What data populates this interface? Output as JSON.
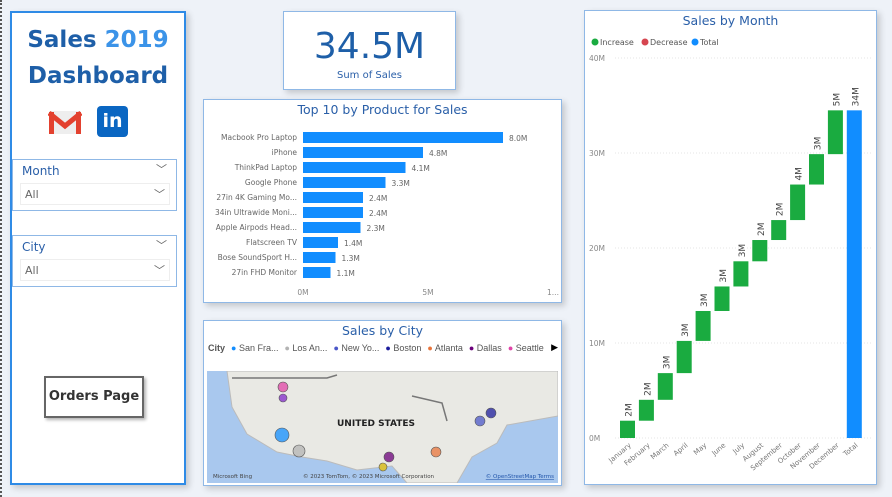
{
  "header": {
    "title_part1": "Sales",
    "title_year": "2019",
    "title_part2": "Dashboard"
  },
  "icons": {
    "gmail": "gmail-icon",
    "linkedin": "linkedin-icon"
  },
  "filters": [
    {
      "label": "Month",
      "value": "All"
    },
    {
      "label": "City",
      "value": "All"
    }
  ],
  "orders_button": "Orders Page",
  "kpi": {
    "value": "34.5M",
    "label": "Sum of Sales"
  },
  "colors": {
    "accent": "#118dff",
    "increase": "#1aab40",
    "decrease": "#d64550",
    "total": "#118dff",
    "title": "#2a5fa8"
  },
  "chart_data": [
    {
      "type": "bar",
      "title": "Top 10 by Product for Sales",
      "orientation": "horizontal",
      "categories": [
        "Macbook Pro Laptop",
        "iPhone",
        "ThinkPad Laptop",
        "Google Phone",
        "27in 4K Gaming Mo...",
        "34in Ultrawide Moni...",
        "Apple Airpods Head...",
        "Flatscreen TV",
        "Bose SoundSport H...",
        "27in FHD Monitor"
      ],
      "values": [
        8.0,
        4.8,
        4.1,
        3.3,
        2.4,
        2.4,
        2.3,
        1.4,
        1.3,
        1.1
      ],
      "data_labels": [
        "8.0M",
        "4.8M",
        "4.1M",
        "3.3M",
        "2.4M",
        "2.4M",
        "2.3M",
        "1.4M",
        "1.3M",
        "1.1M"
      ],
      "xticks": [
        "0M",
        "5M",
        "1..."
      ],
      "xlim": [
        0,
        10
      ],
      "unit": "M"
    },
    {
      "type": "waterfall",
      "title": "Sales by Month",
      "legend": [
        "Increase",
        "Decrease",
        "Total"
      ],
      "categories": [
        "January",
        "February",
        "March",
        "April",
        "May",
        "June",
        "July",
        "August",
        "September",
        "October",
        "November",
        "December",
        "Total"
      ],
      "values": [
        1.82,
        2.2,
        2.81,
        3.39,
        3.15,
        2.58,
        2.65,
        2.24,
        2.1,
        3.74,
        3.2,
        4.61,
        34.49
      ],
      "data_labels": [
        "2M",
        "2M",
        "3M",
        "3M",
        "3M",
        "3M",
        "3M",
        "2M",
        "2M",
        "4M",
        "3M",
        "5M",
        "34M"
      ],
      "yticks": [
        "0M",
        "10M",
        "20M",
        "30M",
        "40M"
      ],
      "ylim": [
        0,
        40
      ],
      "unit": "M"
    }
  ],
  "map": {
    "title": "Sales by City",
    "legend_title": "City",
    "cities": [
      {
        "name": "San Fra...",
        "color": "#118dff"
      },
      {
        "name": "Los An...",
        "color": "#b3b3b3"
      },
      {
        "name": "New Yo...",
        "color": "#4b57c8"
      },
      {
        "name": "Boston",
        "color": "#1c1c9c"
      },
      {
        "name": "Atlanta",
        "color": "#e8743b"
      },
      {
        "name": "Dallas",
        "color": "#6b007b"
      },
      {
        "name": "Seattle",
        "color": "#e044a7"
      }
    ],
    "country_label": "UNITED STATES",
    "bing": "Microsoft Bing",
    "copyright": "© 2023 TomTom, © 2023 Microsoft Corporation",
    "osm": "© OpenStreetMap Terms"
  }
}
